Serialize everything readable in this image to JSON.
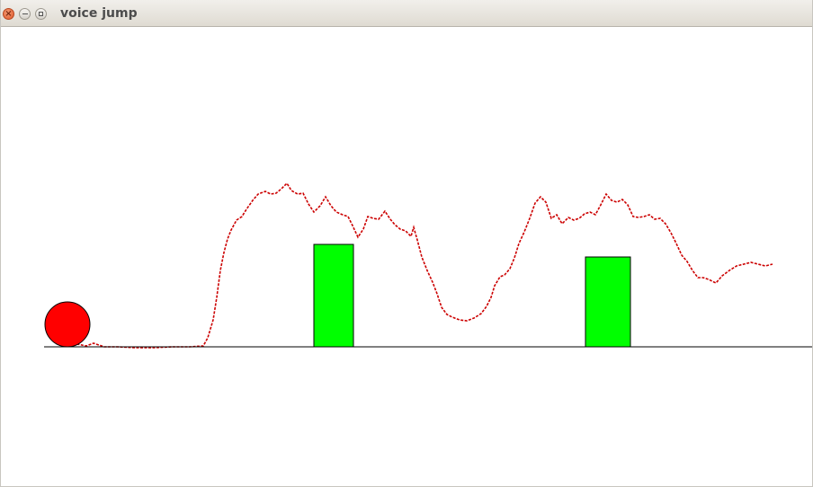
{
  "window": {
    "title": "voice jump",
    "controls": [
      "close",
      "minimize",
      "maximize"
    ]
  },
  "game": {
    "player": {
      "shape": "circle",
      "color": "#ff0000",
      "stroke": "#000000"
    },
    "obstacles": [
      {
        "color": "#00ff00"
      },
      {
        "color": "#00ff00"
      }
    ],
    "ground": {
      "color": "#000000"
    },
    "voice_trace": {
      "color": "#cc0000",
      "style": "dashed"
    }
  }
}
